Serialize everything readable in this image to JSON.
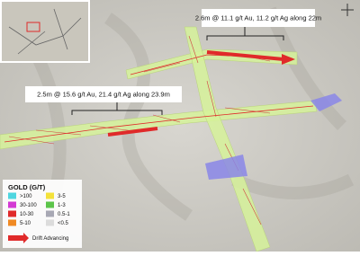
{
  "annotations": [
    "2.6m @ 11.1 g/t Au, 11.2 g/t Ag along 22m",
    "2.5m @ 15.6 g/t Au, 21.4 g/t Ag along 23.9m"
  ],
  "legend": {
    "title": "GOLD (G/T)",
    "items": [
      {
        "label": ">100",
        "color": "#4fd6e0"
      },
      {
        "label": "3-5",
        "color": "#f4e23a"
      },
      {
        "label": "30-100",
        "color": "#d43ad4"
      },
      {
        "label": "1-3",
        "color": "#5cc44a"
      },
      {
        "label": "10-30",
        "color": "#e02a2a"
      },
      {
        "label": "0.5-1",
        "color": "#a8a8b4"
      },
      {
        "label": "5-10",
        "color": "#f08a24"
      },
      {
        "label": "<0.5",
        "color": "#dcdcdc"
      }
    ],
    "arrow_label": "Drift Advancing"
  }
}
